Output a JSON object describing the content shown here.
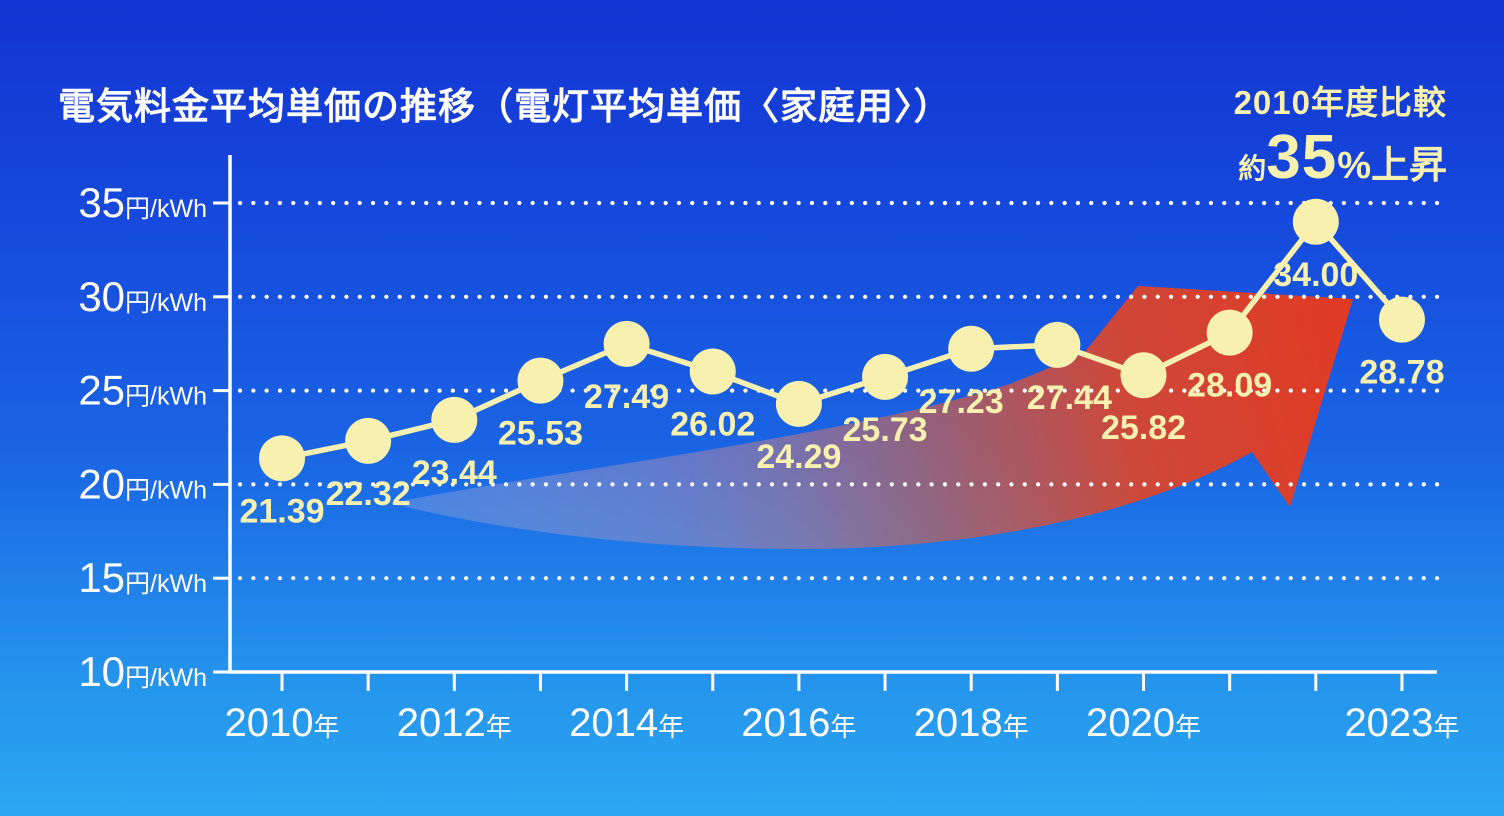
{
  "title": "電気料金平均単価の推移（電灯平均単価〈家庭用〉）",
  "badge": {
    "line1": "2010年度比較",
    "approx": "約",
    "percent_value": "35",
    "suffix": "%上昇"
  },
  "colors": {
    "background_top": "#1433d2",
    "background_bottom": "#2ba8f0",
    "axis_white": "#ffffff",
    "accent_cream": "#f8f0ae",
    "arrow_red": "#e23a22",
    "arrow_tail_gray": "#b4b8d8"
  },
  "chart_data": {
    "type": "line",
    "x": [
      2010,
      2011,
      2012,
      2013,
      2014,
      2015,
      2016,
      2017,
      2018,
      2019,
      2020,
      2021,
      2022,
      2023
    ],
    "values": [
      21.39,
      22.32,
      23.44,
      25.53,
      27.49,
      26.02,
      24.29,
      25.73,
      27.23,
      27.44,
      25.82,
      28.09,
      34.0,
      28.78
    ],
    "labels": [
      "21.39",
      "22.32",
      "23.44",
      "25.53",
      "27.49",
      "26.02",
      "24.29",
      "25.73",
      "27.23",
      "27.44",
      "25.82",
      "28.09",
      "34.00",
      "28.78"
    ],
    "y_ticks": [
      35,
      30,
      25,
      20,
      15,
      10
    ],
    "y_unit": "円/kWh",
    "x_labeled_years": [
      2010,
      2012,
      2014,
      2016,
      2018,
      2020,
      2023
    ],
    "x_unit": "年",
    "ylim": [
      10,
      37
    ],
    "grid": "dotted horizontal white lines at labeled y ticks",
    "legend_position": "none",
    "annotation": "large red upward trend arrow behind the series, pointing up-right"
  }
}
